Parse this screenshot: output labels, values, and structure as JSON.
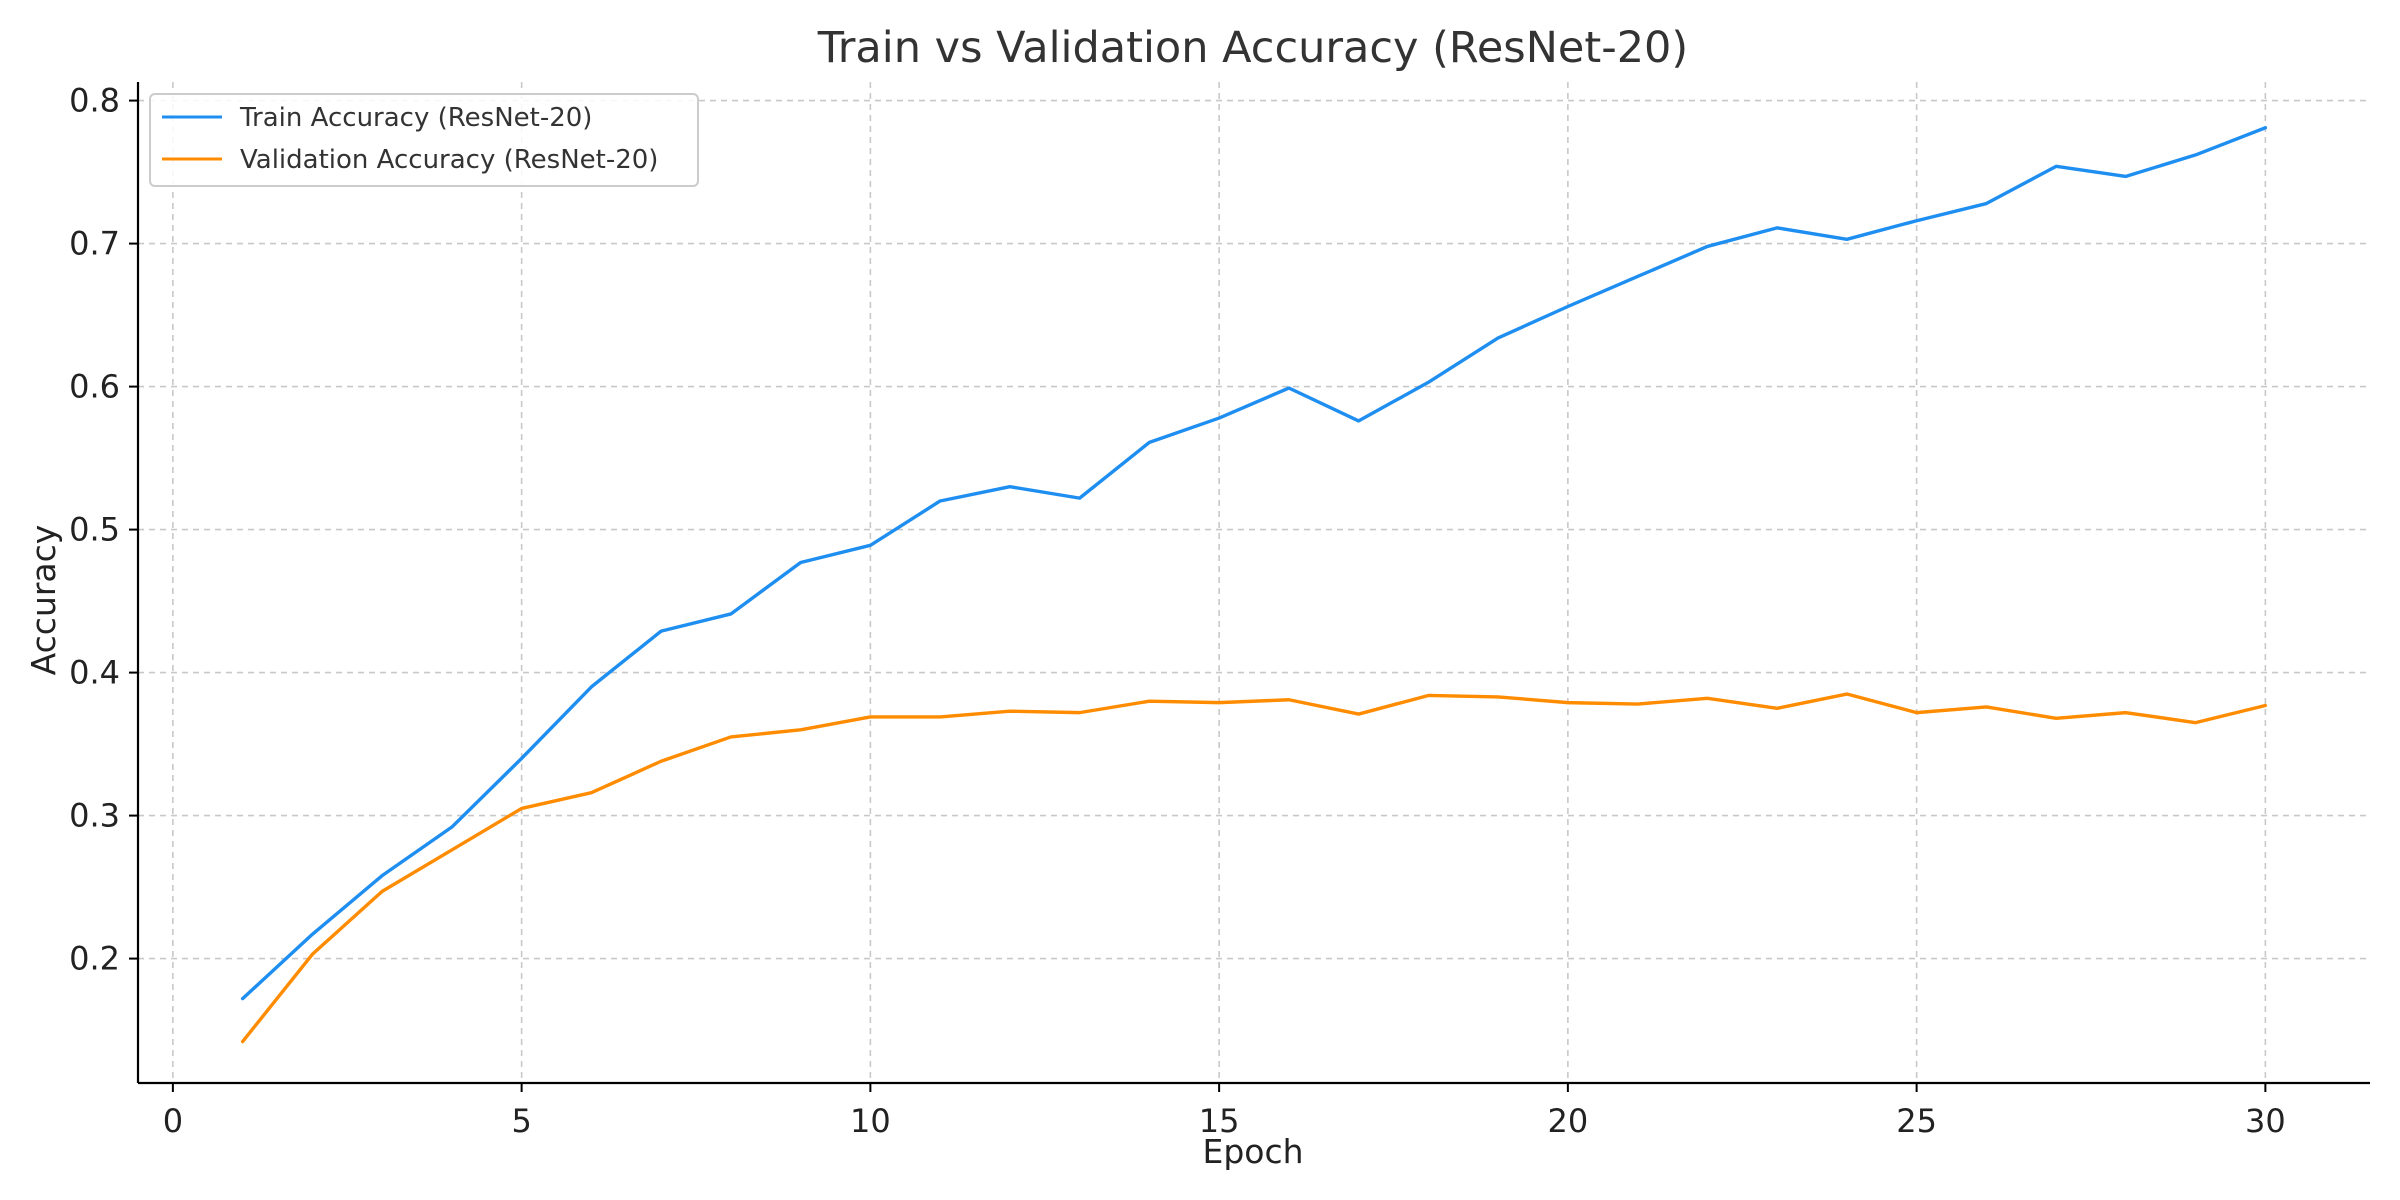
{
  "chart_data": {
    "type": "line",
    "title": "Train vs Validation Accuracy (ResNet-20)",
    "xlabel": "Epoch",
    "ylabel": "Accuracy",
    "xlim": [
      -0.5,
      31.5
    ],
    "ylim": [
      0.113,
      0.813
    ],
    "xticks": [
      0,
      5,
      10,
      15,
      20,
      25,
      30
    ],
    "yticks": [
      0.2,
      0.3,
      0.4,
      0.5,
      0.6,
      0.7,
      0.8
    ],
    "xtick_labels": [
      "0",
      "5",
      "10",
      "15",
      "20",
      "25",
      "30"
    ],
    "ytick_labels": [
      "0.2",
      "0.3",
      "0.4",
      "0.5",
      "0.6",
      "0.7",
      "0.8"
    ],
    "grid": true,
    "legend_position": "top-left",
    "x": [
      1,
      2,
      3,
      4,
      5,
      6,
      7,
      8,
      9,
      10,
      11,
      12,
      13,
      14,
      15,
      16,
      17,
      18,
      19,
      20,
      21,
      22,
      23,
      24,
      25,
      26,
      27,
      28,
      29,
      30
    ],
    "series": [
      {
        "name": "Train Accuracy (ResNet-20)",
        "color": "#1f8ef1",
        "values": [
          0.172,
          0.217,
          0.258,
          0.292,
          0.34,
          0.39,
          0.429,
          0.441,
          0.477,
          0.489,
          0.52,
          0.53,
          0.522,
          0.561,
          0.578,
          0.599,
          0.576,
          0.603,
          0.634,
          0.656,
          0.677,
          0.698,
          0.711,
          0.703,
          0.716,
          0.728,
          0.754,
          0.747,
          0.762,
          0.781
        ]
      },
      {
        "name": "Validation Accuracy (ResNet-20)",
        "color": "#ff8c00",
        "values": [
          0.142,
          0.203,
          0.247,
          0.276,
          0.305,
          0.316,
          0.338,
          0.355,
          0.36,
          0.369,
          0.369,
          0.373,
          0.372,
          0.38,
          0.379,
          0.381,
          0.371,
          0.384,
          0.383,
          0.379,
          0.378,
          0.382,
          0.375,
          0.385,
          0.372,
          0.376,
          0.368,
          0.372,
          0.365,
          0.377
        ]
      }
    ]
  }
}
